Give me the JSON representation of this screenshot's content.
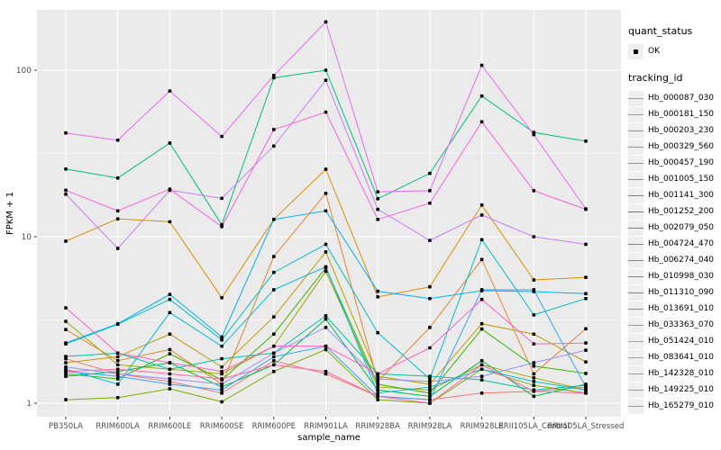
{
  "legend": {
    "quant_status_title": "quant_status",
    "ok_label": "OK",
    "tracking_id_title": "tracking_id"
  },
  "chart_data": {
    "type": "line",
    "title": "",
    "xlabel": "sample_name",
    "ylabel": "FPKM + 1",
    "yscale": "log10",
    "ylim": [
      0.84,
      230
    ],
    "grid": "on",
    "legend_position": "right",
    "point_color": "#000000",
    "panel_bg": "#ebebeb",
    "grid_color": "#ffffff",
    "tick_label_color": "#4d4d4d",
    "yticks": [
      {
        "value": 1,
        "label": "1"
      },
      {
        "value": 10,
        "label": "10"
      },
      {
        "value": 100,
        "label": "100"
      }
    ],
    "yminor": [
      3.1623,
      31.623
    ],
    "categories": [
      "PB350LA",
      "RRIM600LA",
      "RRIM600LE",
      "RRIM600SE",
      "RRIM600PE",
      "RRIM901LA",
      "RRIM928BA",
      "RRIM928LA",
      "RRIM928LE",
      "RRII105LA_Control",
      "RRII105LA_Stressed"
    ],
    "series": [
      {
        "name": "Hb_000087_030",
        "color": "#F8766D",
        "values": [
          1.85,
          1.5,
          1.35,
          1.15,
          1.8,
          1.5,
          1.1,
          1.05,
          1.15,
          1.18,
          1.25
        ]
      },
      {
        "name": "Hb_000181_150",
        "color": "#EA8331",
        "values": [
          2.77,
          1.8,
          2.1,
          1.3,
          7.6,
          18.2,
          1.35,
          2.85,
          7.3,
          1.5,
          2.8
        ]
      },
      {
        "name": "Hb_000203_230",
        "color": "#D89000",
        "values": [
          9.4,
          12.8,
          12.3,
          4.3,
          12.7,
          25.4,
          4.35,
          5.0,
          15.5,
          5.5,
          5.7
        ]
      },
      {
        "name": "Hb_000329_560",
        "color": "#C09B00",
        "values": [
          1.75,
          1.9,
          2.6,
          1.65,
          3.3,
          8.1,
          1.45,
          1.3,
          3.0,
          2.6,
          1.77
        ]
      },
      {
        "name": "Hb_000457_190",
        "color": "#A3A500",
        "values": [
          3.1,
          1.7,
          1.6,
          1.5,
          2.2,
          6.2,
          1.25,
          1.2,
          1.7,
          1.42,
          1.2
        ]
      },
      {
        "name": "Hb_001005_150",
        "color": "#7CAE00",
        "values": [
          1.05,
          1.08,
          1.22,
          1.02,
          1.55,
          2.1,
          1.05,
          1.0,
          1.6,
          1.28,
          1.15
        ]
      },
      {
        "name": "Hb_001141_300",
        "color": "#39B600",
        "values": [
          1.5,
          1.4,
          1.98,
          1.38,
          2.6,
          6.5,
          1.3,
          1.15,
          2.79,
          1.67,
          1.51
        ]
      },
      {
        "name": "Hb_001252_200",
        "color": "#00BB4E",
        "values": [
          1.45,
          1.55,
          1.75,
          1.25,
          1.7,
          3.2,
          1.2,
          1.1,
          1.8,
          1.1,
          1.3
        ]
      },
      {
        "name": "Hb_002079_050",
        "color": "#00BF7D",
        "values": [
          25.5,
          22.5,
          36.5,
          11.8,
          90,
          100,
          16.9,
          24,
          70,
          42.3,
          37.5
        ]
      },
      {
        "name": "Hb_004724_470",
        "color": "#00C1A3",
        "values": [
          1.91,
          2.0,
          1.6,
          1.85,
          2.0,
          3.35,
          1.5,
          1.45,
          1.38,
          1.2,
          1.28
        ]
      },
      {
        "name": "Hb_006274_040",
        "color": "#00BFC4",
        "values": [
          2.27,
          2.98,
          4.2,
          2.4,
          6.1,
          9.0,
          2.65,
          1.4,
          9.6,
          3.39,
          4.25
        ]
      },
      {
        "name": "Hb_010998_030",
        "color": "#00BAE0",
        "values": [
          1.6,
          1.3,
          3.5,
          2.2,
          4.8,
          6.6,
          1.15,
          1.25,
          1.6,
          1.35,
          1.2
        ]
      },
      {
        "name": "Hb_011310_090",
        "color": "#00B0F6",
        "values": [
          2.3,
          3.0,
          4.5,
          2.5,
          12.7,
          14.3,
          4.7,
          4.25,
          4.74,
          4.68,
          4.55
        ]
      },
      {
        "name": "Hb_013691_010",
        "color": "#35A2FF",
        "values": [
          1.55,
          1.45,
          1.3,
          1.2,
          1.9,
          2.2,
          1.1,
          1.05,
          4.8,
          4.8,
          1.25
        ]
      },
      {
        "name": "Hb_033363_070",
        "color": "#9590FF",
        "values": [
          1.65,
          1.5,
          1.4,
          1.3,
          2.0,
          2.85,
          1.4,
          1.35,
          1.45,
          1.75,
          2.08
        ]
      },
      {
        "name": "Hb_051424_010",
        "color": "#C77CFF",
        "values": [
          18,
          8.5,
          19,
          17,
          35,
          87,
          14.6,
          9.5,
          13.5,
          10,
          9
        ]
      },
      {
        "name": "Hb_083641_010",
        "color": "#E76BF3",
        "values": [
          42,
          38,
          75,
          40,
          93,
          195,
          18.6,
          18.9,
          107,
          41,
          14.7
        ]
      },
      {
        "name": "Hb_142328_010",
        "color": "#FA62DB",
        "values": [
          19,
          14.3,
          19.3,
          11.5,
          44,
          56,
          12.7,
          15.9,
          49,
          18.9,
          14.6
        ]
      },
      {
        "name": "Hb_149225_010",
        "color": "#FF61C3",
        "values": [
          3.74,
          2.0,
          1.75,
          1.55,
          2.2,
          2.2,
          1.5,
          2.15,
          4.2,
          2.27,
          2.3
        ]
      },
      {
        "name": "Hb_165279_010",
        "color": "#FF67A4",
        "values": [
          1.55,
          1.6,
          1.5,
          1.4,
          1.7,
          1.55,
          1.1,
          1.0,
          1.7,
          1.18,
          1.15
        ]
      }
    ]
  }
}
